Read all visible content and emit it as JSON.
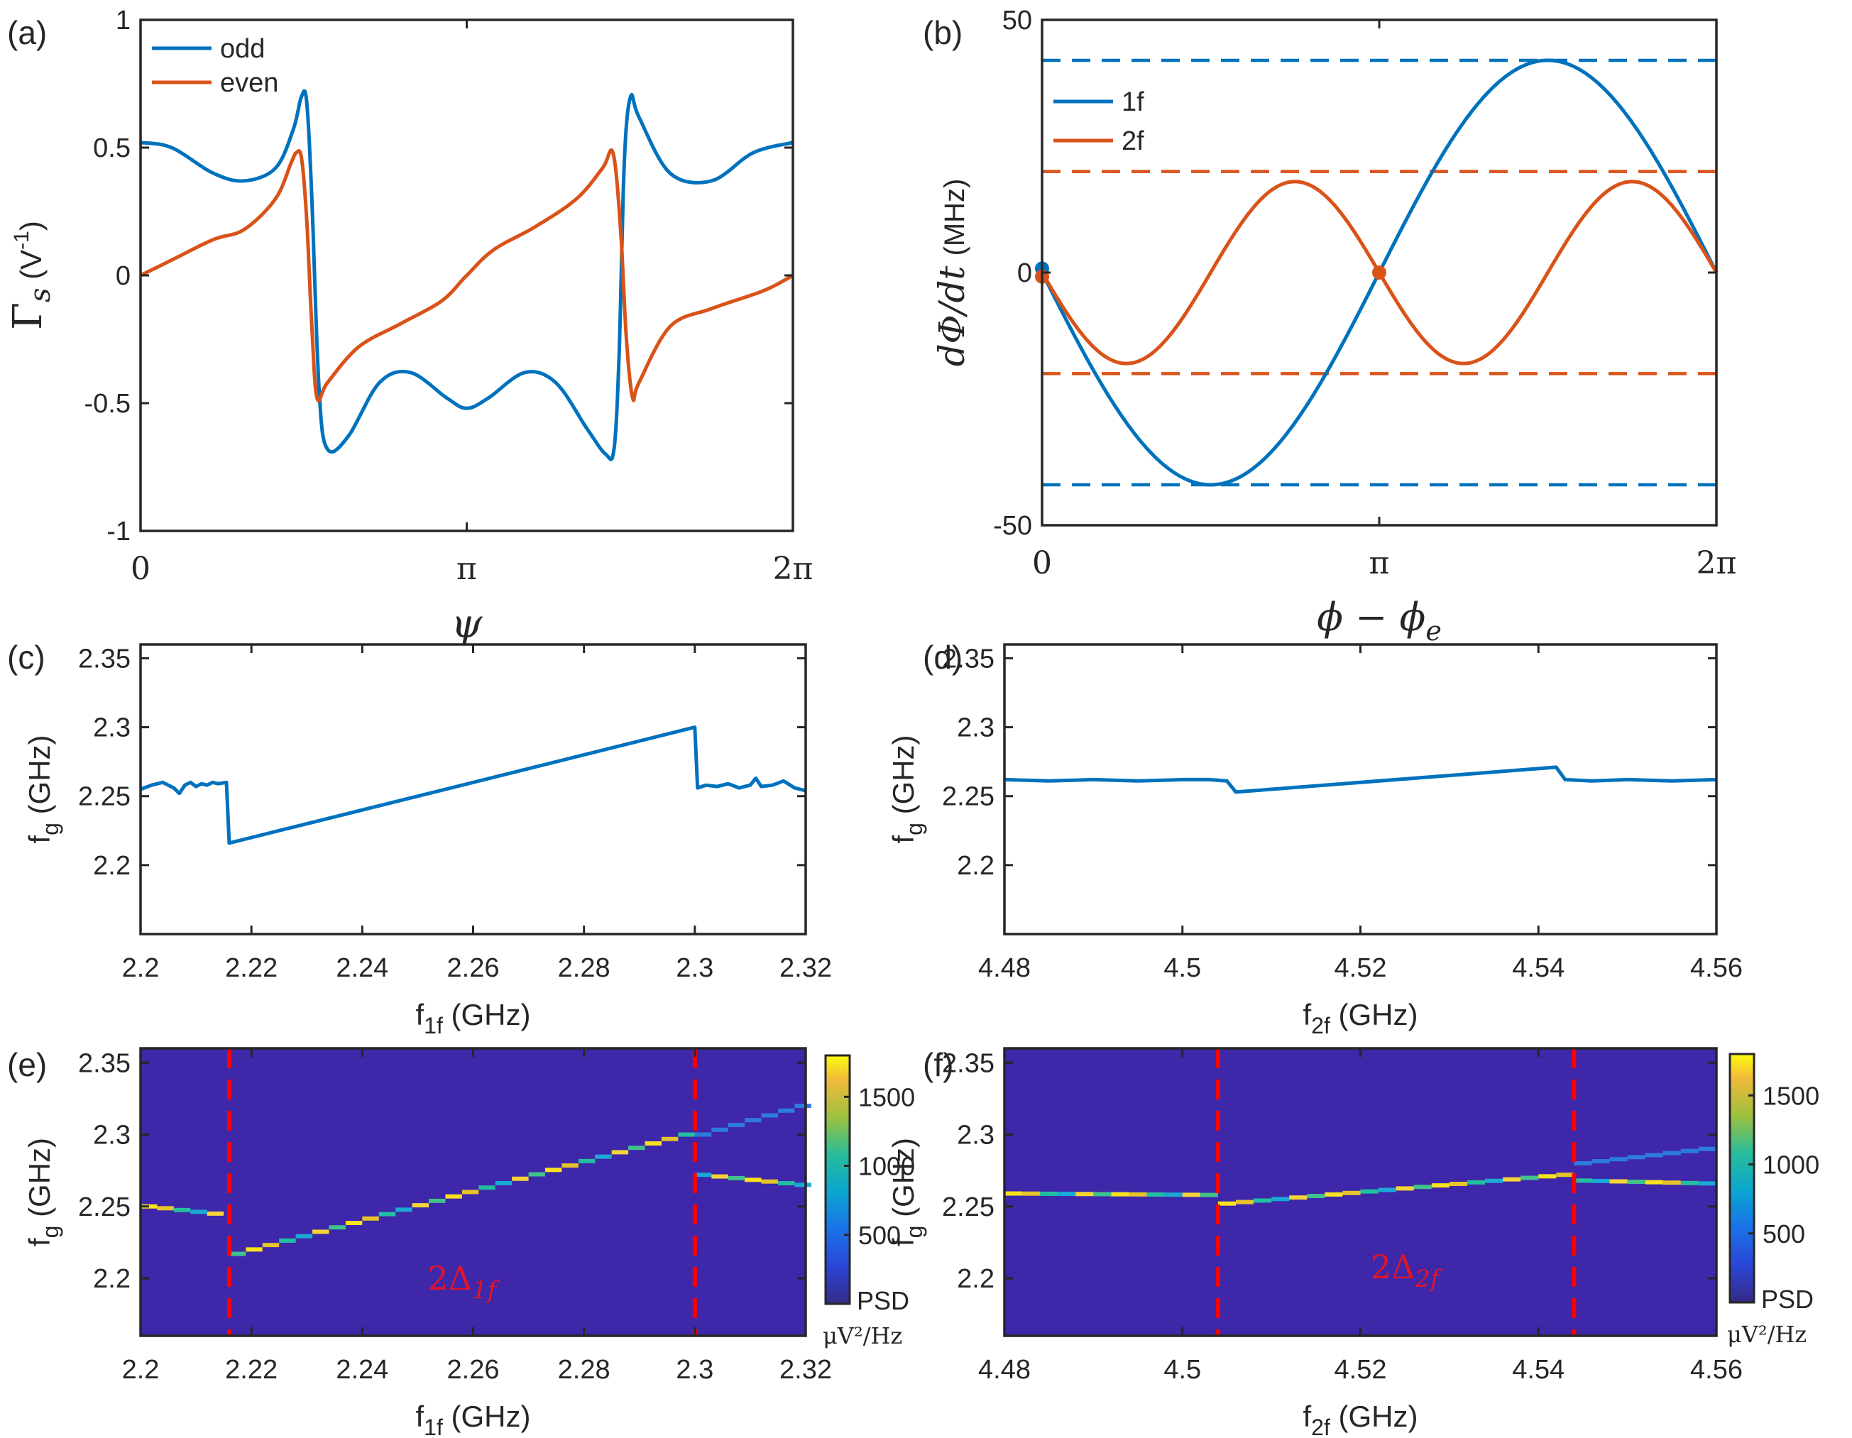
{
  "colors": {
    "blue": "#0072BD",
    "orange": "#D95319",
    "heat_bg": "#3E27A8",
    "red": "#FF0000"
  },
  "chart_data": [
    {
      "id": "a",
      "panel_label": "(a)",
      "type": "line",
      "xlabel": "ψ",
      "ylabel_main": "Γ",
      "ylabel_sub": "s",
      "ylabel_unit": "(V",
      "ylabel_unit_sup": "-1",
      "ylabel_unit_close": ")",
      "xlim": [
        0,
        6.2832
      ],
      "ylim": [
        -1,
        1
      ],
      "xticks": [
        {
          "v": 0,
          "label": "0"
        },
        {
          "v": 3.1416,
          "label": "π"
        },
        {
          "v": 6.2832,
          "label": "2π"
        }
      ],
      "yticks": [
        {
          "v": -1,
          "label": "-1"
        },
        {
          "v": -0.5,
          "label": "-0.5"
        },
        {
          "v": 0,
          "label": "0"
        },
        {
          "v": 0.5,
          "label": "0.5"
        },
        {
          "v": 1,
          "label": "1"
        }
      ],
      "legend": [
        "odd",
        "even"
      ],
      "series": [
        {
          "name": "odd",
          "color": "#0072BD",
          "x": [
            0,
            0.3,
            0.7,
            1.0,
            1.3,
            1.47,
            1.55,
            1.6,
            1.65,
            1.72,
            1.8,
            2.0,
            2.3,
            2.6,
            2.95,
            3.1416,
            3.35,
            3.7,
            4.0,
            4.3,
            4.48,
            4.56,
            4.61,
            4.66,
            4.72,
            4.8,
            5.1,
            5.5,
            5.9,
            6.2832
          ],
          "y": [
            0.52,
            0.5,
            0.4,
            0.37,
            0.42,
            0.57,
            0.7,
            0.68,
            0.3,
            -0.45,
            -0.68,
            -0.63,
            -0.42,
            -0.38,
            -0.48,
            -0.52,
            -0.48,
            -0.38,
            -0.42,
            -0.6,
            -0.7,
            -0.68,
            -0.3,
            0.45,
            0.7,
            0.62,
            0.4,
            0.37,
            0.48,
            0.52
          ]
        },
        {
          "name": "even",
          "color": "#D95319",
          "x": [
            0,
            0.3,
            0.7,
            1.0,
            1.3,
            1.45,
            1.5,
            1.55,
            1.6,
            1.65,
            1.7,
            1.8,
            2.1,
            2.5,
            2.9,
            3.1416,
            3.4,
            3.8,
            4.2,
            4.45,
            4.55,
            4.62,
            4.68,
            4.74,
            4.8,
            5.1,
            5.5,
            6.0,
            6.2832
          ],
          "y": [
            0,
            0.06,
            0.14,
            0.18,
            0.3,
            0.44,
            0.48,
            0.46,
            0.22,
            -0.2,
            -0.48,
            -0.42,
            -0.28,
            -0.19,
            -0.1,
            0,
            0.1,
            0.19,
            0.3,
            0.42,
            0.48,
            0.2,
            -0.25,
            -0.48,
            -0.42,
            -0.2,
            -0.13,
            -0.06,
            0
          ]
        }
      ]
    },
    {
      "id": "b",
      "panel_label": "(b)",
      "type": "line",
      "xlabel": "ϕ − ϕ",
      "xlabel_sub": "e",
      "ylabel": "dΦ/dt",
      "ylabel_unit": "(MHz)",
      "xlim": [
        0,
        6.2832
      ],
      "ylim": [
        -50,
        50
      ],
      "xticks": [
        {
          "v": 0,
          "label": "0"
        },
        {
          "v": 3.1416,
          "label": "π"
        },
        {
          "v": 6.2832,
          "label": "2π"
        }
      ],
      "yticks": [
        {
          "v": -50,
          "label": "-50"
        },
        {
          "v": 0,
          "label": "0"
        },
        {
          "v": 50,
          "label": "50"
        }
      ],
      "legend": [
        "1f",
        "2f"
      ],
      "series": [
        {
          "name": "1f",
          "color": "#0072BD",
          "func": "neg_sin",
          "amplitude": 42
        },
        {
          "name": "2f",
          "color": "#D95319",
          "func": "neg_sin2",
          "amplitude": 18
        }
      ],
      "hlines": [
        {
          "y": 42,
          "color": "#0072BD"
        },
        {
          "y": -42,
          "color": "#0072BD"
        },
        {
          "y": 20,
          "color": "#D95319"
        },
        {
          "y": -20,
          "color": "#D95319"
        }
      ],
      "markers": [
        {
          "x": 0,
          "y": 0.8,
          "color": "#0072BD"
        },
        {
          "x": 0,
          "y": -0.8,
          "color": "#D95319"
        },
        {
          "x": 3.1416,
          "y": 0,
          "color": "#D95319"
        }
      ]
    },
    {
      "id": "c",
      "panel_label": "(c)",
      "type": "line",
      "xlabel": "f",
      "xlabel_sub": "1f",
      "xlabel_unit": " (GHz)",
      "ylabel": "f",
      "ylabel_sub": "g",
      "ylabel_unit": " (GHz)",
      "xlim": [
        2.2,
        2.32
      ],
      "ylim": [
        2.15,
        2.36
      ],
      "xticks": [
        {
          "v": 2.2,
          "label": "2.2"
        },
        {
          "v": 2.22,
          "label": "2.22"
        },
        {
          "v": 2.24,
          "label": "2.24"
        },
        {
          "v": 2.26,
          "label": "2.26"
        },
        {
          "v": 2.28,
          "label": "2.28"
        },
        {
          "v": 2.3,
          "label": "2.3"
        },
        {
          "v": 2.32,
          "label": "2.32"
        }
      ],
      "yticks": [
        {
          "v": 2.2,
          "label": "2.2"
        },
        {
          "v": 2.25,
          "label": "2.25"
        },
        {
          "v": 2.3,
          "label": "2.3"
        },
        {
          "v": 2.35,
          "label": "2.35"
        }
      ],
      "series": [
        {
          "name": "fg",
          "color": "#0072BD",
          "x": [
            2.2,
            2.202,
            2.204,
            2.206,
            2.207,
            2.208,
            2.209,
            2.21,
            2.211,
            2.212,
            2.213,
            2.214,
            2.2155,
            2.216,
            2.3,
            2.3005,
            2.302,
            2.304,
            2.306,
            2.308,
            2.31,
            2.311,
            2.312,
            2.314,
            2.316,
            2.318,
            2.32
          ],
          "y": [
            2.255,
            2.258,
            2.26,
            2.256,
            2.252,
            2.258,
            2.26,
            2.257,
            2.259,
            2.258,
            2.26,
            2.259,
            2.26,
            2.216,
            2.3,
            2.256,
            2.258,
            2.257,
            2.259,
            2.256,
            2.258,
            2.263,
            2.257,
            2.258,
            2.261,
            2.256,
            2.254
          ]
        }
      ]
    },
    {
      "id": "d",
      "panel_label": "(d)",
      "type": "line",
      "xlabel": "f",
      "xlabel_sub": "2f",
      "xlabel_unit": " (GHz)",
      "ylabel": "f",
      "ylabel_sub": "g",
      "ylabel_unit": " (GHz)",
      "xlim": [
        4.48,
        4.56
      ],
      "ylim": [
        2.15,
        2.36
      ],
      "xticks": [
        {
          "v": 4.48,
          "label": "4.48"
        },
        {
          "v": 4.5,
          "label": "4.5"
        },
        {
          "v": 4.52,
          "label": "4.52"
        },
        {
          "v": 4.54,
          "label": "4.54"
        },
        {
          "v": 4.56,
          "label": "4.56"
        }
      ],
      "yticks": [
        {
          "v": 2.2,
          "label": "2.2"
        },
        {
          "v": 2.25,
          "label": "2.25"
        },
        {
          "v": 2.3,
          "label": "2.3"
        },
        {
          "v": 2.35,
          "label": "2.35"
        }
      ],
      "series": [
        {
          "name": "fg",
          "color": "#0072BD",
          "x": [
            4.48,
            4.485,
            4.49,
            4.495,
            4.5,
            4.503,
            4.505,
            4.506,
            4.542,
            4.543,
            4.546,
            4.55,
            4.555,
            4.56
          ],
          "y": [
            2.262,
            2.261,
            2.262,
            2.261,
            2.262,
            2.262,
            2.261,
            2.253,
            2.271,
            2.262,
            2.261,
            2.262,
            2.261,
            2.262
          ]
        }
      ]
    },
    {
      "id": "e",
      "panel_label": "(e)",
      "type": "heatmap",
      "xlabel": "f",
      "xlabel_sub": "1f",
      "xlabel_unit": " (GHz)",
      "ylabel": "f",
      "ylabel_sub": "g",
      "ylabel_unit": " (GHz)",
      "xlim": [
        2.2,
        2.32
      ],
      "ylim": [
        2.16,
        2.36
      ],
      "xticks": [
        {
          "v": 2.2,
          "label": "2.2"
        },
        {
          "v": 2.22,
          "label": "2.22"
        },
        {
          "v": 2.24,
          "label": "2.24"
        },
        {
          "v": 2.26,
          "label": "2.26"
        },
        {
          "v": 2.28,
          "label": "2.28"
        },
        {
          "v": 2.3,
          "label": "2.3"
        },
        {
          "v": 2.32,
          "label": "2.32"
        }
      ],
      "yticks": [
        {
          "v": 2.2,
          "label": "2.2"
        },
        {
          "v": 2.25,
          "label": "2.25"
        },
        {
          "v": 2.3,
          "label": "2.3"
        },
        {
          "v": 2.35,
          "label": "2.35"
        }
      ],
      "vlines": [
        2.216,
        2.3
      ],
      "annotation": "2Δ",
      "annotation_sub": "1f",
      "annotation_pos": {
        "x": 2.258,
        "y": 2.192
      },
      "segments": {
        "start": [
          2.2,
          2.316
        ],
        "step": 0.003,
        "dx": 0.003,
        "parts": [
          {
            "x0": 2.2,
            "x1": 2.216,
            "y0": 2.25,
            "y1": 2.245
          },
          {
            "x0": 2.216,
            "x1": 2.3,
            "y0": 2.217,
            "y1": 2.3
          },
          {
            "x0": 2.3,
            "x1": 2.32,
            "y0": 2.272,
            "y1": 2.265
          },
          {
            "x0": 2.3,
            "x1": 2.32,
            "y0": 2.3,
            "y1": 2.32
          }
        ]
      },
      "colorbar": {
        "range": [
          0,
          1800
        ],
        "ticks": [
          {
            "v": 500,
            "label": "500"
          },
          {
            "v": 1000,
            "label": "1000"
          },
          {
            "v": 1500,
            "label": "1500"
          }
        ],
        "title": "PSD",
        "unit": "μV²/Hz"
      }
    },
    {
      "id": "f",
      "panel_label": "(f)",
      "type": "heatmap",
      "xlabel": "f",
      "xlabel_sub": "2f",
      "xlabel_unit": " (GHz)",
      "ylabel": "f",
      "ylabel_sub": "g",
      "ylabel_unit": " (GHz)",
      "xlim": [
        4.48,
        4.56
      ],
      "ylim": [
        2.16,
        2.36
      ],
      "xticks": [
        {
          "v": 4.48,
          "label": "4.48"
        },
        {
          "v": 4.5,
          "label": "4.5"
        },
        {
          "v": 4.52,
          "label": "4.52"
        },
        {
          "v": 4.54,
          "label": "4.54"
        },
        {
          "v": 4.56,
          "label": "4.56"
        }
      ],
      "yticks": [
        {
          "v": 2.2,
          "label": "2.2"
        },
        {
          "v": 2.25,
          "label": "2.25"
        },
        {
          "v": 2.3,
          "label": "2.3"
        },
        {
          "v": 2.35,
          "label": "2.35"
        }
      ],
      "vlines": [
        4.504,
        4.544
      ],
      "annotation": "2Δ",
      "annotation_sub": "2f",
      "annotation_pos": {
        "x": 4.525,
        "y": 2.2
      },
      "segments": {
        "parts": [
          {
            "x0": 4.48,
            "x1": 4.504,
            "y0": 2.259,
            "y1": 2.258
          },
          {
            "x0": 4.504,
            "x1": 4.544,
            "y0": 2.252,
            "y1": 2.272
          },
          {
            "x0": 4.544,
            "x1": 4.56,
            "y0": 2.268,
            "y1": 2.266
          },
          {
            "x0": 4.544,
            "x1": 4.56,
            "y0": 2.28,
            "y1": 2.29
          }
        ],
        "dx": 0.002
      },
      "colorbar": {
        "range": [
          0,
          1800
        ],
        "ticks": [
          {
            "v": 500,
            "label": "500"
          },
          {
            "v": 1000,
            "label": "1000"
          },
          {
            "v": 1500,
            "label": "1500"
          }
        ],
        "title": "PSD",
        "unit": "μV²/Hz"
      }
    }
  ]
}
